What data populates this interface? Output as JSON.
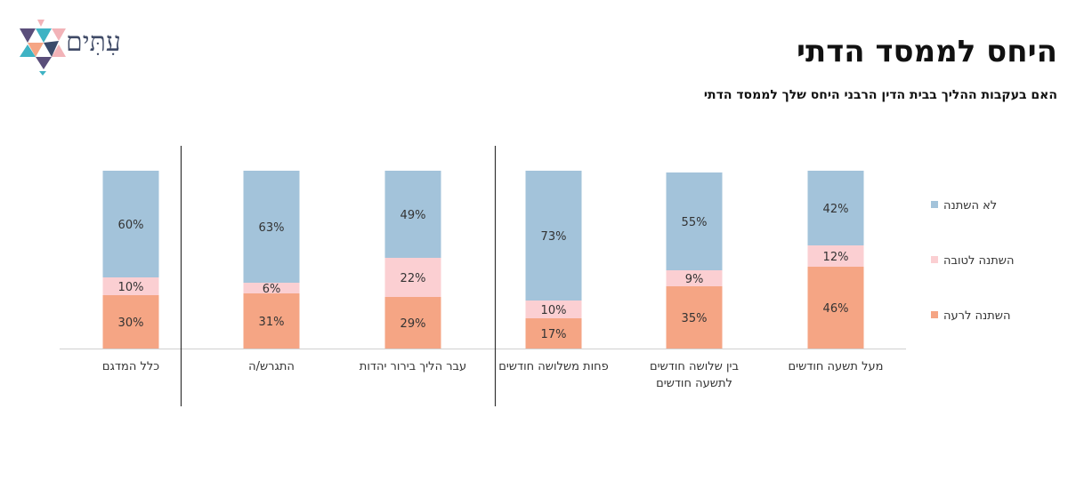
{
  "header": {
    "title": "היחס לממסד הדתי",
    "subtitle": "האם בעקבות ההליך בבית הדין הרבני היחס שלך לממסד הדתי",
    "logo_text": "עִתִּים"
  },
  "colors": {
    "no_change": "#a3c3da",
    "better": "#fbcfd2",
    "worse": "#f5a584",
    "axis": "#d0d0d0",
    "divider": "#333333",
    "text": "#333333"
  },
  "chart_data": {
    "type": "bar",
    "stacked": true,
    "title": "",
    "xlabel": "",
    "ylabel": "",
    "ylim": [
      0,
      100
    ],
    "grid": false,
    "legend_position": "right",
    "categories": [
      "כלל המדגם",
      "התגרש/ה",
      "עבר הליך בירור יהדות",
      "פחות משלושה חודשים",
      "בין שלושה חודשים לתשעה חודשים",
      "מעל תשעה חודשים"
    ],
    "series": [
      {
        "name": "השתנה לרעה",
        "color": "#f5a584",
        "values": [
          30,
          31,
          29,
          17,
          35,
          46
        ]
      },
      {
        "name": "השתנה לטובה",
        "color": "#fbcfd2",
        "values": [
          10,
          6,
          22,
          10,
          9,
          12
        ]
      },
      {
        "name": "לא השתנה",
        "color": "#a3c3da",
        "values": [
          60,
          63,
          49,
          73,
          55,
          42
        ]
      }
    ],
    "legend_order": [
      "לא השתנה",
      "השתנה לטובה",
      "השתנה לרעה"
    ],
    "value_suffix": "%"
  }
}
